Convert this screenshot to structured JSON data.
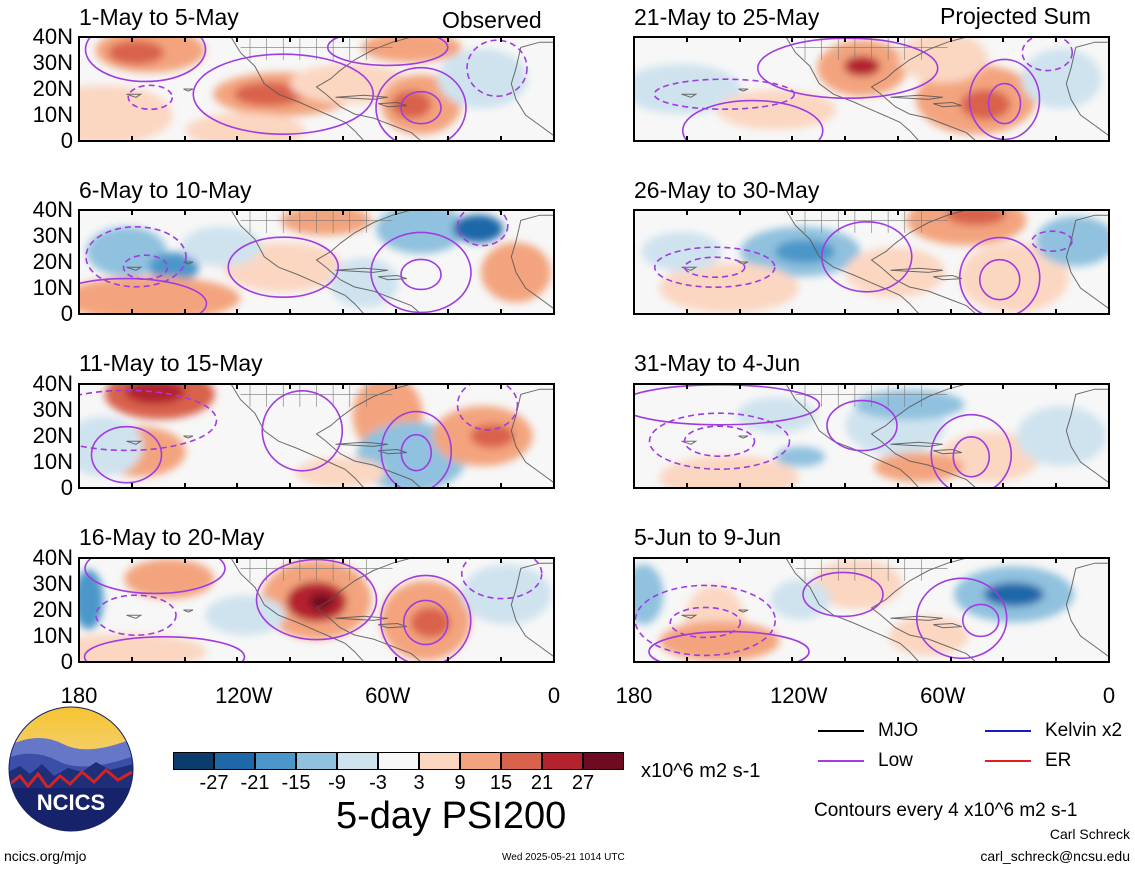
{
  "header": {
    "left_label": "Observed",
    "right_label": "Projected Sum"
  },
  "panels_left": [
    {
      "title": "1-May to 5-May"
    },
    {
      "title": "6-May to 10-May"
    },
    {
      "title": "11-May to 15-May"
    },
    {
      "title": "16-May to 20-May"
    }
  ],
  "panels_right": [
    {
      "title": "21-May to 25-May"
    },
    {
      "title": "26-May to 30-May"
    },
    {
      "title": "31-May to 4-Jun"
    },
    {
      "title": "5-Jun to 9-Jun"
    }
  ],
  "lat_ticks": [
    "40N",
    "30N",
    "20N",
    "10N",
    "0"
  ],
  "lon_ticks": [
    "180",
    "120W",
    "60W",
    "0"
  ],
  "colorbar": {
    "ticks": [
      "-27",
      "-21",
      "-15",
      "-9",
      "-3",
      "3",
      "9",
      "15",
      "21",
      "27"
    ],
    "colors": [
      "#0b3c6d",
      "#1f68a8",
      "#4c97c9",
      "#90c1de",
      "#cfe3ef",
      "#f7f7f7",
      "#fbd7c2",
      "#f3a47e",
      "#d9624c",
      "#b3222d",
      "#6e0a21"
    ],
    "units": "x10^6 m2 s-1"
  },
  "title": "5-day PSI200",
  "legend": {
    "items": [
      {
        "label": "MJO",
        "color": "#000000"
      },
      {
        "label": "Kelvin x2",
        "color": "#1a1acc"
      },
      {
        "label": "Low",
        "color": "#a03ce0"
      },
      {
        "label": "ER",
        "color": "#e02020"
      }
    ],
    "contour_note": "Contours every 4 x10^6 m2 s-1"
  },
  "logo": {
    "text": "NCICS"
  },
  "footer": {
    "url": "ncics.org/mjo",
    "timestamp": "Wed 2025-05-21 1014 UTC",
    "author": "Carl Schreck",
    "email": "carl_schreck@ncsu.edu"
  }
}
